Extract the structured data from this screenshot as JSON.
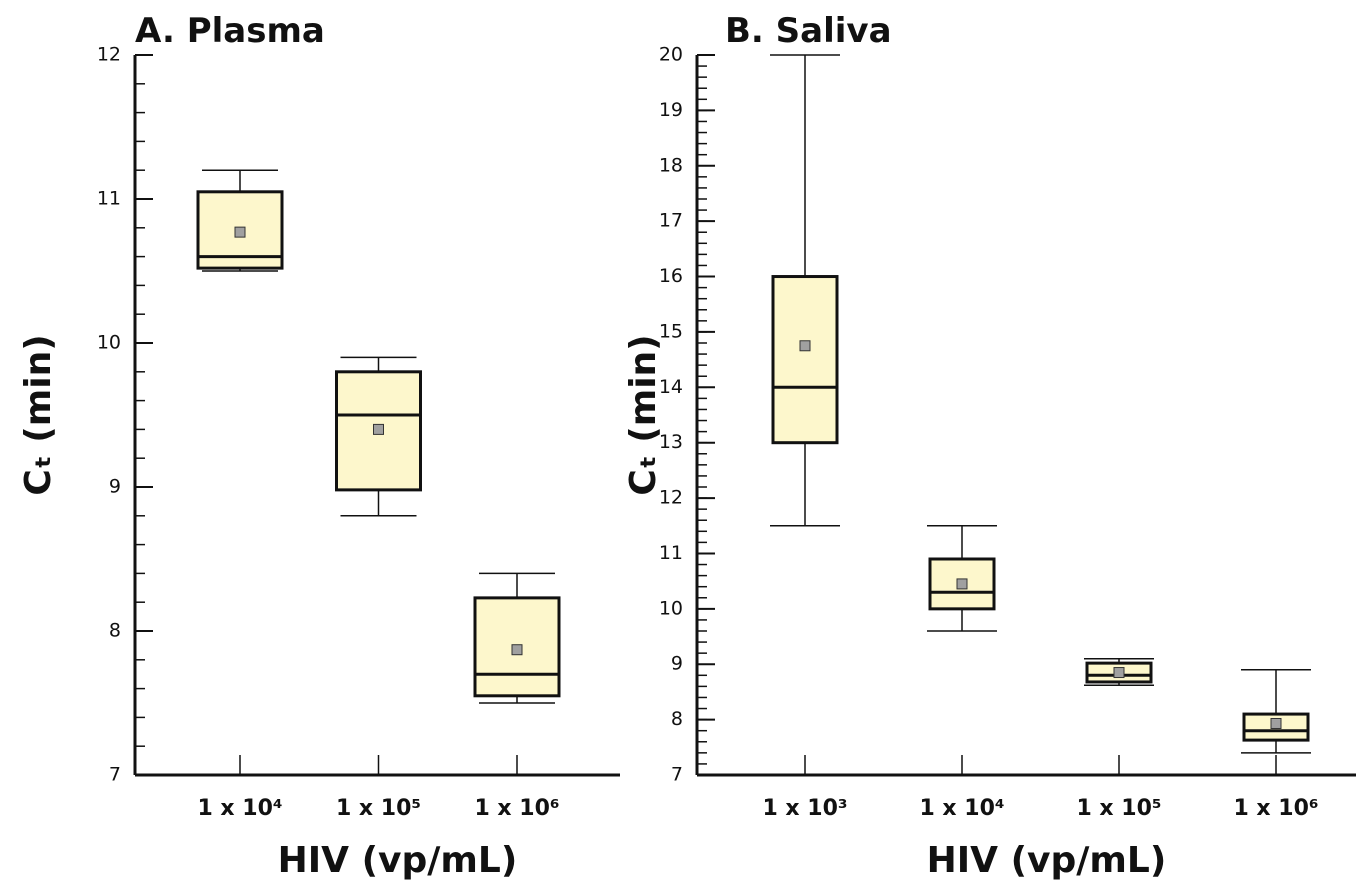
{
  "chart_data": [
    {
      "type": "box",
      "title": "A. Plasma",
      "x_label": "HIV (vp/mL)",
      "y_label": "Cₜ (min)",
      "categories": [
        "1 x 10⁴",
        "1 x 10⁵",
        "1 x 10⁶"
      ],
      "boxes": [
        {
          "min": 10.5,
          "q1": 10.52,
          "median": 10.6,
          "q3": 11.05,
          "max": 11.2,
          "mean": 10.77
        },
        {
          "min": 8.8,
          "q1": 8.98,
          "median": 9.5,
          "q3": 9.8,
          "max": 9.9,
          "mean": 9.4
        },
        {
          "min": 7.5,
          "q1": 7.55,
          "median": 7.7,
          "q3": 8.23,
          "max": 8.4,
          "mean": 7.87
        }
      ],
      "box_color": "#fdf7cc",
      "mean_color": "#a0a0a0",
      "ylim": [
        7,
        12
      ],
      "yticks": [
        7,
        8,
        9,
        10,
        11,
        12
      ],
      "minor_step": 0.2
    },
    {
      "type": "box",
      "title": "B. Saliva",
      "x_label": "HIV (vp/mL)",
      "y_label": "Cₜ (min)",
      "categories": [
        "1 x 10³",
        "1 x 10⁴",
        "1 x 10⁵",
        "1 x 10⁶"
      ],
      "boxes": [
        {
          "min": 11.5,
          "q1": 13.0,
          "median": 14.0,
          "q3": 16.0,
          "max": 20,
          "mean": 14.75
        },
        {
          "min": 9.6,
          "q1": 10.0,
          "median": 10.3,
          "q3": 10.9,
          "max": 11.5,
          "mean": 10.45
        },
        {
          "min": 8.62,
          "q1": 8.68,
          "median": 8.8,
          "q3": 9.02,
          "max": 9.1,
          "mean": 8.85
        },
        {
          "min": 7.4,
          "q1": 7.63,
          "median": 7.8,
          "q3": 8.1,
          "max": 8.9,
          "mean": 7.93
        }
      ],
      "box_color": "#fdf7cc",
      "mean_color": "#a0a0a0",
      "ylim": [
        7,
        20
      ],
      "yticks": [
        7,
        8,
        9,
        10,
        11,
        12,
        13,
        14,
        15,
        16,
        17,
        18,
        19,
        20
      ],
      "minor_step": 0.2
    }
  ]
}
